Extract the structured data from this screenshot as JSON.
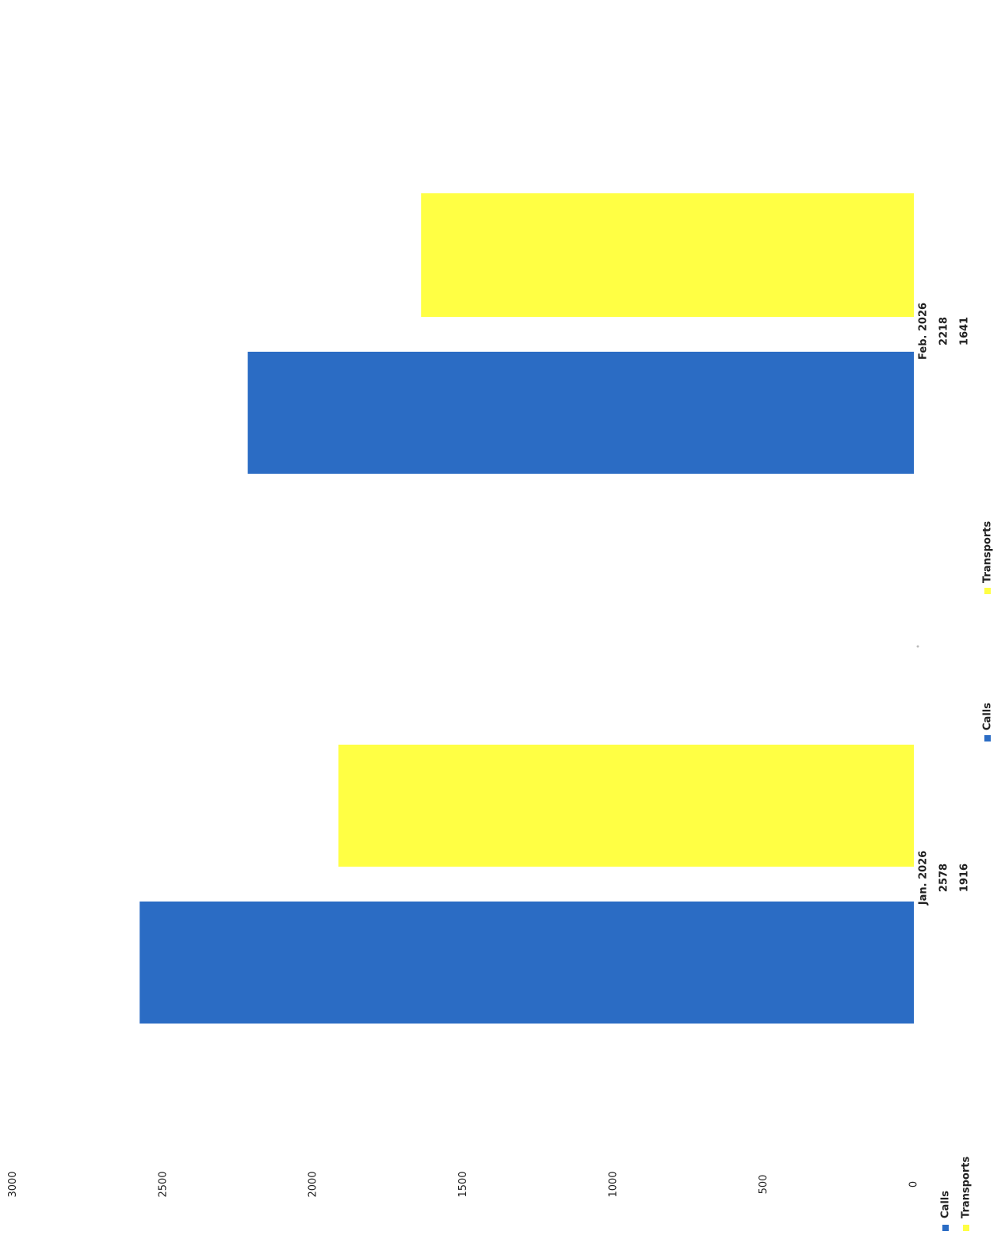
{
  "chart_data": {
    "type": "bar",
    "orientation": "horizontal",
    "categories": [
      "Jan. 2026",
      "Feb. 2026"
    ],
    "series": [
      {
        "name": "Calls",
        "values": [
          2578,
          2218
        ],
        "color": "#2b6cc4"
      },
      {
        "name": "Transports",
        "values": [
          1916,
          1641
        ],
        "color": "#ffff44"
      }
    ],
    "xlim": [
      0,
      3000
    ],
    "xticks": [
      "0",
      "500",
      "1000",
      "1500",
      "2000",
      "2500",
      "3000"
    ],
    "grid": false,
    "legends": [
      {
        "position": "bottom-left",
        "entries": [
          "Calls",
          "Transports"
        ]
      },
      {
        "position": "center",
        "entries": [
          "Calls",
          "Transports"
        ]
      }
    ]
  }
}
